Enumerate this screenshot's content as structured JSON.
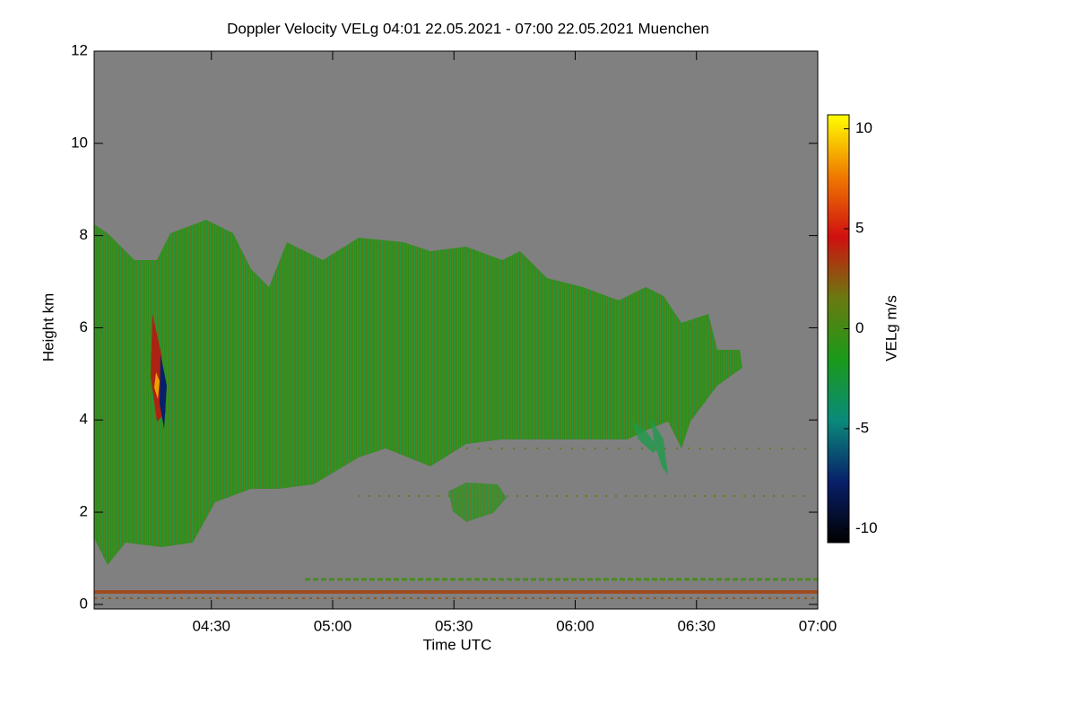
{
  "chart_data": {
    "type": "heatmap",
    "title": "Doppler Velocity VELg   04:01 22.05.2021 - 07:00 22.05.2021 Muenchen",
    "xlabel": "Time UTC",
    "ylabel": "Height km",
    "xlim": [
      241,
      420
    ],
    "xticks": [
      {
        "value": 270,
        "label": "04:30"
      },
      {
        "value": 300,
        "label": "05:00"
      },
      {
        "value": 330,
        "label": "05:30"
      },
      {
        "value": 360,
        "label": "06:00"
      },
      {
        "value": 390,
        "label": "06:30"
      },
      {
        "value": 420,
        "label": "07:00"
      }
    ],
    "ylim": [
      -0.1,
      12
    ],
    "yticks": [
      0,
      2,
      4,
      6,
      8,
      10,
      12
    ],
    "colorbar": {
      "label": "VELg m/s",
      "lim": [
        -10.7,
        10.7
      ],
      "ticks": [
        -10,
        -5,
        0,
        5,
        10
      ],
      "colormap": [
        "#000000",
        "#08206a",
        "#0a8a7a",
        "#1a9a1a",
        "#6a7a10",
        "#d01010",
        "#f07a00",
        "#ffff00"
      ]
    },
    "background": "#808080"
  }
}
